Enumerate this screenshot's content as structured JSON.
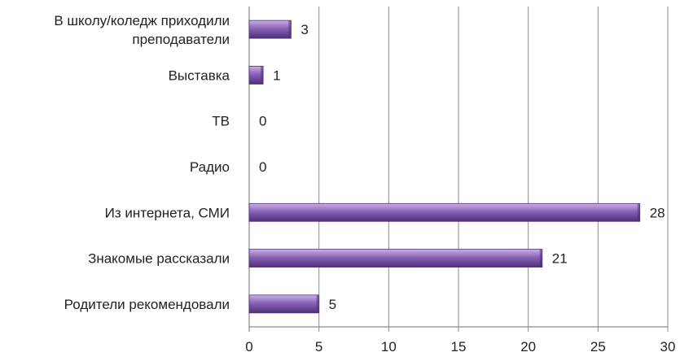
{
  "chart_data": {
    "type": "bar",
    "orientation": "horizontal",
    "categories": [
      "В школу/коледж приходили преподаватели",
      "Выставка",
      "ТВ",
      "Радио",
      "Из интернета,  СМИ",
      "Знакомые рассказали",
      "Родители рекомендовали"
    ],
    "values": [
      3,
      1,
      0,
      0,
      28,
      21,
      5
    ],
    "xlim": [
      0,
      30
    ],
    "xticks": [
      0,
      5,
      10,
      15,
      20,
      25,
      30
    ],
    "grid": true,
    "legend": "none",
    "bar_color": "#8a62b8",
    "bar_color_dark": "#4e2f78",
    "bar_color_light": "#c9b3e6"
  }
}
